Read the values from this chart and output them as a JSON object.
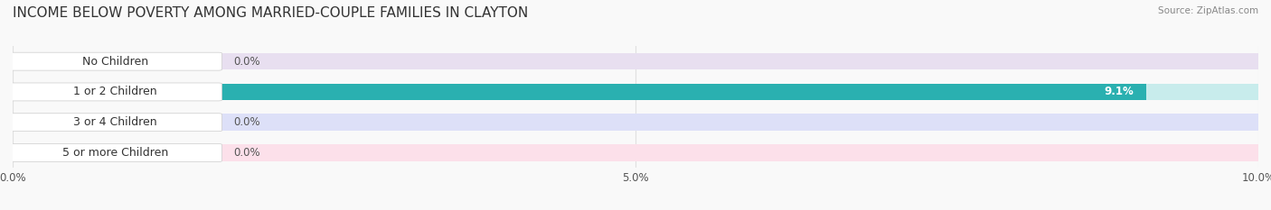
{
  "title": "INCOME BELOW POVERTY AMONG MARRIED-COUPLE FAMILIES IN CLAYTON",
  "source": "Source: ZipAtlas.com",
  "categories": [
    "No Children",
    "1 or 2 Children",
    "3 or 4 Children",
    "5 or more Children"
  ],
  "values": [
    0.0,
    9.1,
    0.0,
    0.0
  ],
  "bar_colors": [
    "#c9a8d4",
    "#2ab0b0",
    "#aab4e8",
    "#f4a8c0"
  ],
  "bg_colors": [
    "#e8dff0",
    "#c8ecec",
    "#dde0f8",
    "#fce0ea"
  ],
  "xlim": [
    0,
    10.0
  ],
  "xticks": [
    0.0,
    5.0,
    10.0
  ],
  "xticklabels": [
    "0.0%",
    "5.0%",
    "10.0%"
  ],
  "bar_height": 0.55,
  "figsize": [
    14.06,
    2.33
  ],
  "dpi": 100,
  "title_fontsize": 11,
  "label_fontsize": 9,
  "tick_fontsize": 8.5,
  "value_fontsize": 8.5,
  "background_color": "#f9f9f9",
  "grid_color": "#e0e0e0"
}
